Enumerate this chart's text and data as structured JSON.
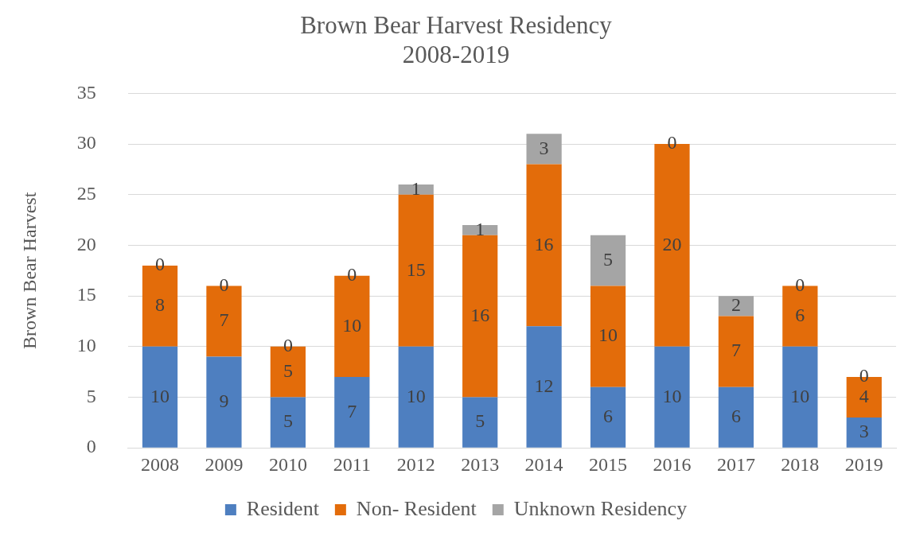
{
  "chart_data": {
    "type": "bar",
    "title": "Brown Bear Harvest Residency",
    "subtitle": "2008-2019",
    "ylabel": "Brown Bear Harvest",
    "categories": [
      "2008",
      "2009",
      "2010",
      "2011",
      "2012",
      "2013",
      "2014",
      "2015",
      "2016",
      "2017",
      "2018",
      "2019"
    ],
    "stacked": true,
    "data_labels": true,
    "grid": "y",
    "legend": "bottom",
    "ylim": [
      0,
      35
    ],
    "yticks": [
      0,
      5,
      10,
      15,
      20,
      25,
      30,
      35
    ],
    "series": [
      {
        "name": "Resident",
        "color": "#4e7fc0",
        "values": [
          10,
          9,
          5,
          7,
          10,
          5,
          12,
          6,
          10,
          6,
          10,
          3
        ]
      },
      {
        "name": "Non- Resident",
        "color": "#e36c0a",
        "values": [
          8,
          7,
          5,
          10,
          15,
          16,
          16,
          10,
          20,
          7,
          6,
          4
        ]
      },
      {
        "name": "Unknown Residency",
        "color": "#a5a5a5",
        "values": [
          0,
          0,
          0,
          0,
          1,
          1,
          3,
          5,
          0,
          2,
          0,
          0
        ]
      }
    ]
  }
}
